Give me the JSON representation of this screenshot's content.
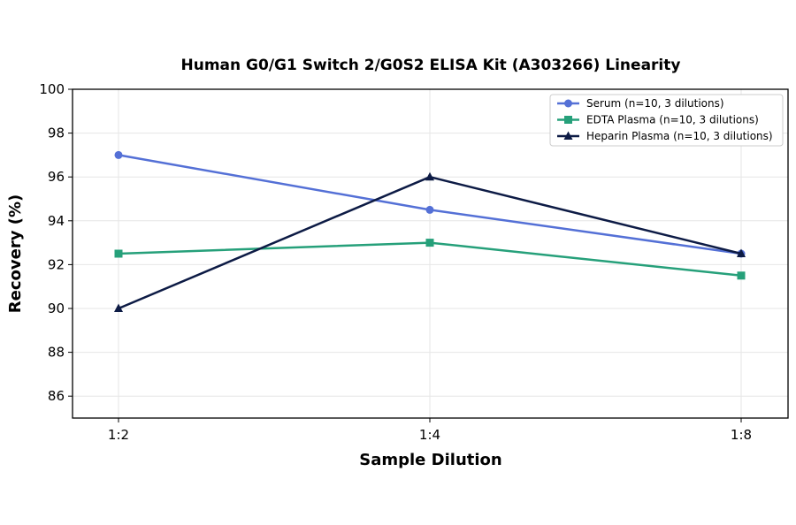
{
  "chart_data": {
    "type": "line",
    "title": "Human G0/G1 Switch 2/G0S2 ELISA Kit (A303266) Linearity",
    "xlabel": "Sample Dilution",
    "ylabel": "Recovery (%)",
    "categories": [
      "1:2",
      "1:4",
      "1:8"
    ],
    "ylim": [
      85,
      100
    ],
    "yticks": [
      86,
      88,
      90,
      92,
      94,
      96,
      98,
      100
    ],
    "grid": true,
    "legend_position": "top-right",
    "series": [
      {
        "name": "Serum (n=10, 3 dilutions)",
        "values": [
          97.0,
          94.5,
          92.5
        ],
        "color": "#5470d6",
        "marker": "circle"
      },
      {
        "name": "EDTA Plasma (n=10, 3 dilutions)",
        "values": [
          92.5,
          93.0,
          91.5
        ],
        "color": "#26a07a",
        "marker": "square"
      },
      {
        "name": "Heparin Plasma (n=10, 3 dilutions)",
        "values": [
          90.0,
          96.0,
          92.5
        ],
        "color": "#0d1b45",
        "marker": "triangle"
      }
    ]
  }
}
